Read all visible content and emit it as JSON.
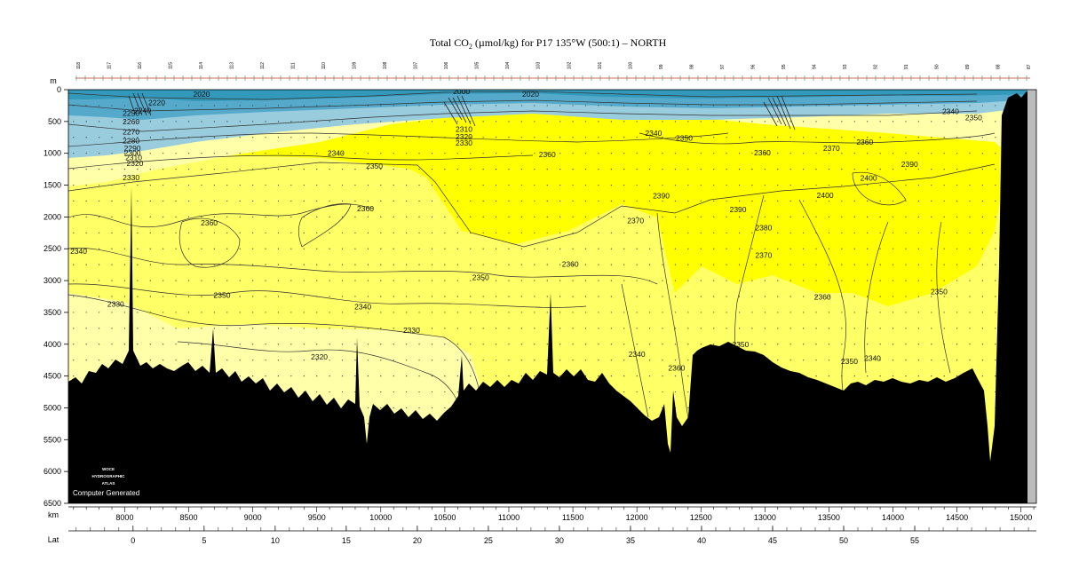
{
  "chart_data": {
    "type": "heatmap",
    "title_main": "Total CO",
    "title_sub": "2",
    "title_rest": " (µmol/kg) for P17 135°W (500:1) – NORTH",
    "depth_unit": "m",
    "x_unit": "km",
    "lat_label": "Lat",
    "depth_range": [
      0,
      6500
    ],
    "km_range": [
      7560,
      15120
    ],
    "depth_ticks": [
      0,
      500,
      1000,
      1500,
      2000,
      2500,
      3000,
      3500,
      4000,
      4500,
      5000,
      5500,
      6000,
      6500
    ],
    "km_ticks": [
      8000,
      8500,
      9000,
      9500,
      10000,
      10500,
      11000,
      11500,
      12000,
      12500,
      13000,
      13500,
      14000,
      14500,
      15000
    ],
    "lat_ticks": [
      {
        "lat": 0,
        "km": 8065
      },
      {
        "lat": 5,
        "km": 8620
      },
      {
        "lat": 10,
        "km": 9175
      },
      {
        "lat": 15,
        "km": 9730
      },
      {
        "lat": 20,
        "km": 10285
      },
      {
        "lat": 25,
        "km": 10840
      },
      {
        "lat": 30,
        "km": 11395
      },
      {
        "lat": 35,
        "km": 11950
      },
      {
        "lat": 40,
        "km": 12505
      },
      {
        "lat": 45,
        "km": 13060
      },
      {
        "lat": 50,
        "km": 13615
      },
      {
        "lat": 55,
        "km": 14170
      }
    ],
    "color_bands": [
      {
        "range": "2020-2100",
        "color": "#3399bb"
      },
      {
        "range": "2100-2200",
        "color": "#55aacc"
      },
      {
        "range": "2200-2300",
        "color": "#99ccdd"
      },
      {
        "range": "2300-2330",
        "color": "#ffffaa"
      },
      {
        "range": "2330-2360",
        "color": "#ffff66"
      },
      {
        "range": "2360-2400",
        "color": "#ffff00"
      }
    ],
    "contour_labels": [
      {
        "text": "2020",
        "km": 8600,
        "depth": 70
      },
      {
        "text": "2000",
        "km": 10630,
        "depth": 30
      },
      {
        "text": "2020",
        "km": 11170,
        "depth": 70
      },
      {
        "text": "2220",
        "km": 8250,
        "depth": 200
      },
      {
        "text": "2240",
        "km": 8140,
        "depth": 330
      },
      {
        "text": "2250",
        "km": 8050,
        "depth": 370
      },
      {
        "text": "2260",
        "km": 8050,
        "depth": 500
      },
      {
        "text": "2270",
        "km": 8050,
        "depth": 660
      },
      {
        "text": "2280",
        "km": 8050,
        "depth": 800
      },
      {
        "text": "2290",
        "km": 8060,
        "depth": 920
      },
      {
        "text": "2300",
        "km": 8060,
        "depth": 1000
      },
      {
        "text": "2310",
        "km": 8070,
        "depth": 1070
      },
      {
        "text": "2320",
        "km": 8080,
        "depth": 1160
      },
      {
        "text": "2330",
        "km": 8050,
        "depth": 1380
      },
      {
        "text": "2340",
        "km": 9650,
        "depth": 1000
      },
      {
        "text": "2350",
        "km": 9950,
        "depth": 1200
      },
      {
        "text": "2310",
        "km": 10650,
        "depth": 620
      },
      {
        "text": "2320",
        "km": 10650,
        "depth": 740
      },
      {
        "text": "2330",
        "km": 10650,
        "depth": 840
      },
      {
        "text": "2340",
        "km": 12130,
        "depth": 680
      },
      {
        "text": "2350",
        "km": 12370,
        "depth": 760
      },
      {
        "text": "2360",
        "km": 11300,
        "depth": 1020
      },
      {
        "text": "2360",
        "km": 12980,
        "depth": 990
      },
      {
        "text": "2370",
        "km": 13520,
        "depth": 920
      },
      {
        "text": "2360",
        "km": 13780,
        "depth": 820
      },
      {
        "text": "2340",
        "km": 14450,
        "depth": 340
      },
      {
        "text": "2350",
        "km": 14630,
        "depth": 440
      },
      {
        "text": "2390",
        "km": 14130,
        "depth": 1170
      },
      {
        "text": "2400",
        "km": 13810,
        "depth": 1390
      },
      {
        "text": "2400",
        "km": 13470,
        "depth": 1660
      },
      {
        "text": "2390",
        "km": 12190,
        "depth": 1670
      },
      {
        "text": "2390",
        "km": 12790,
        "depth": 1880
      },
      {
        "text": "2360",
        "km": 8660,
        "depth": 2090
      },
      {
        "text": "2360",
        "km": 9880,
        "depth": 1870
      },
      {
        "text": "2370",
        "km": 11990,
        "depth": 2060
      },
      {
        "text": "2380",
        "km": 12990,
        "depth": 2170
      },
      {
        "text": "2340",
        "km": 7640,
        "depth": 2540
      },
      {
        "text": "2360",
        "km": 11480,
        "depth": 2740
      },
      {
        "text": "2370",
        "km": 12990,
        "depth": 2600
      },
      {
        "text": "2350",
        "km": 10780,
        "depth": 2950
      },
      {
        "text": "2350",
        "km": 8760,
        "depth": 3230
      },
      {
        "text": "2340",
        "km": 9860,
        "depth": 3410
      },
      {
        "text": "2330",
        "km": 7930,
        "depth": 3370
      },
      {
        "text": "2360",
        "km": 13450,
        "depth": 3260
      },
      {
        "text": "2350",
        "km": 14360,
        "depth": 3170
      },
      {
        "text": "2330",
        "km": 10240,
        "depth": 3780
      },
      {
        "text": "2320",
        "km": 9520,
        "depth": 4200
      },
      {
        "text": "2340",
        "km": 12000,
        "depth": 4160
      },
      {
        "text": "2350",
        "km": 12810,
        "depth": 4000
      },
      {
        "text": "2360",
        "km": 12310,
        "depth": 4370
      },
      {
        "text": "2350",
        "km": 13660,
        "depth": 4270
      },
      {
        "text": "2340",
        "km": 13840,
        "depth": 4220
      }
    ],
    "stations": [
      "118",
      "117",
      "116",
      "115",
      "114",
      "113",
      "112",
      "111",
      "110",
      "109",
      "108",
      "107",
      "106",
      "105",
      "104",
      "103",
      "102",
      "101",
      "100",
      "99",
      "98",
      "97",
      "96",
      "95",
      "94",
      "93",
      "92",
      "91",
      "90",
      "89",
      "88",
      "87"
    ],
    "logo_lines": [
      "WOCE",
      "HYDROGRAPHIC",
      "ATLAS"
    ],
    "credit": "Computer Generated"
  }
}
